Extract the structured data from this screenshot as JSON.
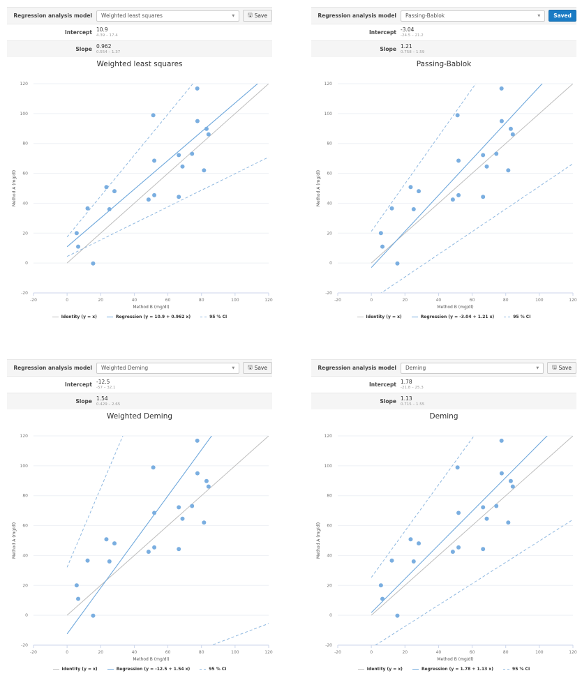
{
  "form_labels": {
    "model": "Regression analysis model",
    "intercept": "Intercept",
    "slope": "Slope"
  },
  "colors": {
    "point": "#7aaee0",
    "regression": "#6fa8dc",
    "identity": "#bdbdbd",
    "ci": "#8fb8e0",
    "saved_button": "#1a7bc4"
  },
  "panels": [
    {
      "model": "Weighted least squares",
      "button": "Save",
      "button_state": "save",
      "intercept": "10.9",
      "intercept_ci": "4.39 – 17.4",
      "slope": "0.962",
      "slope_ci": "0.554 – 1.37",
      "legend": {
        "identity": "Identity (y = x)",
        "regression": "Regression (y = 10.9 + 0.962 x)",
        "ci": "95 % CI"
      }
    },
    {
      "model": "Passing-Bablok",
      "button": "Saved",
      "button_state": "saved",
      "intercept": "-3.04",
      "intercept_ci": "-24.5 – 21.2",
      "slope": "1.21",
      "slope_ci": "0.758 – 1.59",
      "legend": {
        "identity": "Identity (y = x)",
        "regression": "Regression (y = -3.04 + 1.21 x)",
        "ci": "95 % CI"
      }
    },
    {
      "model": "Weighted Deming",
      "button": "Save",
      "button_state": "save",
      "intercept": "-12.5",
      "intercept_ci": "-57 – 32.1",
      "slope": "1.54",
      "slope_ci": "0.429 – 2.65",
      "legend": {
        "identity": "Identity (y = x)",
        "regression": "Regression (y = -12.5 + 1.54 x)",
        "ci": "95 % CI"
      }
    },
    {
      "model": "Deming",
      "button": "Save",
      "button_state": "save",
      "intercept": "1.78",
      "intercept_ci": "-21.8 – 25.3",
      "slope": "1.13",
      "slope_ci": "0.715 – 1.55",
      "legend": {
        "identity": "Identity (y = x)",
        "regression": "Regression (y = 1.78 + 1.13 x)",
        "ci": "95 % CI"
      }
    }
  ],
  "chart_data": [
    {
      "type": "scatter",
      "title": "Weighted least squares",
      "xlabel": "Method B (mg/dl)",
      "ylabel": "Method A (mg/dl)",
      "xlim": [
        -20,
        120
      ],
      "ylim": [
        -20,
        120
      ],
      "xticks": [
        "-20",
        "0",
        "20",
        "40",
        "60",
        "80",
        "100",
        "120"
      ],
      "yticks": [
        "-20",
        "0",
        "20",
        "40",
        "60",
        "80",
        "100",
        "120"
      ],
      "points": [
        [
          5.7,
          20
        ],
        [
          6.6,
          11
        ],
        [
          15.5,
          -0.3
        ],
        [
          12.2,
          36.6
        ],
        [
          23.4,
          50.8
        ],
        [
          28.2,
          48.1
        ],
        [
          25.2,
          36
        ],
        [
          48.5,
          42.5
        ],
        [
          51.9,
          45.4
        ],
        [
          51.3,
          98.9
        ],
        [
          51.9,
          68.5
        ],
        [
          66.5,
          72.2
        ],
        [
          68.7,
          64.6
        ],
        [
          66.5,
          44.3
        ],
        [
          74.4,
          73.1
        ],
        [
          77.5,
          116.8
        ],
        [
          77.6,
          95
        ],
        [
          81.5,
          62
        ],
        [
          83,
          89.8
        ],
        [
          84.2,
          86.1
        ]
      ],
      "regression": {
        "intercept": 10.9,
        "slope": 0.962
      },
      "ci_upper": {
        "intercept": 17.4,
        "slope": 1.37
      },
      "ci_lower": {
        "intercept": 4.39,
        "slope": 0.554
      },
      "legend_position": "bottom"
    },
    {
      "type": "scatter",
      "title": "Passing-Bablok",
      "xlabel": "Method B (mg/dl)",
      "ylabel": "Method A (mg/dl)",
      "xlim": [
        -20,
        120
      ],
      "ylim": [
        -20,
        120
      ],
      "xticks": [
        "-20",
        "0",
        "20",
        "40",
        "60",
        "80",
        "100",
        "120"
      ],
      "yticks": [
        "-20",
        "0",
        "20",
        "40",
        "60",
        "80",
        "100",
        "120"
      ],
      "points": [
        [
          5.7,
          20
        ],
        [
          6.6,
          11
        ],
        [
          15.5,
          -0.3
        ],
        [
          12.2,
          36.6
        ],
        [
          23.4,
          50.8
        ],
        [
          28.2,
          48.1
        ],
        [
          25.2,
          36
        ],
        [
          48.5,
          42.5
        ],
        [
          51.9,
          45.4
        ],
        [
          51.3,
          98.9
        ],
        [
          51.9,
          68.5
        ],
        [
          66.5,
          72.2
        ],
        [
          68.7,
          64.6
        ],
        [
          66.5,
          44.3
        ],
        [
          74.4,
          73.1
        ],
        [
          77.5,
          116.8
        ],
        [
          77.6,
          95
        ],
        [
          81.5,
          62
        ],
        [
          83,
          89.8
        ],
        [
          84.2,
          86.1
        ]
      ],
      "regression": {
        "intercept": -3.04,
        "slope": 1.21
      },
      "ci_upper": {
        "intercept": 21.2,
        "slope": 1.59
      },
      "ci_lower": {
        "intercept": -24.5,
        "slope": 0.758
      },
      "legend_position": "bottom"
    },
    {
      "type": "scatter",
      "title": "Weighted Deming",
      "xlabel": "Method B (mg/dl)",
      "ylabel": "Method A (mg/dl)",
      "xlim": [
        -20,
        120
      ],
      "ylim": [
        -20,
        120
      ],
      "xticks": [
        "-20",
        "0",
        "20",
        "40",
        "60",
        "80",
        "100",
        "120"
      ],
      "yticks": [
        "-20",
        "0",
        "20",
        "40",
        "60",
        "80",
        "100",
        "120"
      ],
      "points": [
        [
          5.7,
          20
        ],
        [
          6.6,
          11
        ],
        [
          15.5,
          -0.3
        ],
        [
          12.2,
          36.6
        ],
        [
          23.4,
          50.8
        ],
        [
          28.2,
          48.1
        ],
        [
          25.2,
          36
        ],
        [
          48.5,
          42.5
        ],
        [
          51.9,
          45.4
        ],
        [
          51.3,
          98.9
        ],
        [
          51.9,
          68.5
        ],
        [
          66.5,
          72.2
        ],
        [
          68.7,
          64.6
        ],
        [
          66.5,
          44.3
        ],
        [
          74.4,
          73.1
        ],
        [
          77.5,
          116.8
        ],
        [
          77.6,
          95
        ],
        [
          81.5,
          62
        ],
        [
          83,
          89.8
        ],
        [
          84.2,
          86.1
        ]
      ],
      "regression": {
        "intercept": -12.5,
        "slope": 1.54
      },
      "ci_upper": {
        "intercept": 32.1,
        "slope": 2.65
      },
      "ci_lower": {
        "intercept": -57,
        "slope": 0.429
      },
      "legend_position": "bottom"
    },
    {
      "type": "scatter",
      "title": "Deming",
      "xlabel": "Method B (mg/dl)",
      "ylabel": "Method A (mg/dl)",
      "xlim": [
        -20,
        120
      ],
      "ylim": [
        -20,
        120
      ],
      "xticks": [
        "-20",
        "0",
        "20",
        "40",
        "60",
        "80",
        "100",
        "120"
      ],
      "yticks": [
        "-20",
        "0",
        "20",
        "40",
        "60",
        "80",
        "100",
        "120"
      ],
      "points": [
        [
          5.7,
          20
        ],
        [
          6.6,
          11
        ],
        [
          15.5,
          -0.3
        ],
        [
          12.2,
          36.6
        ],
        [
          23.4,
          50.8
        ],
        [
          28.2,
          48.1
        ],
        [
          25.2,
          36
        ],
        [
          48.5,
          42.5
        ],
        [
          51.9,
          45.4
        ],
        [
          51.3,
          98.9
        ],
        [
          51.9,
          68.5
        ],
        [
          66.5,
          72.2
        ],
        [
          68.7,
          64.6
        ],
        [
          66.5,
          44.3
        ],
        [
          74.4,
          73.1
        ],
        [
          77.5,
          116.8
        ],
        [
          77.6,
          95
        ],
        [
          81.5,
          62
        ],
        [
          83,
          89.8
        ],
        [
          84.2,
          86.1
        ]
      ],
      "regression": {
        "intercept": 1.78,
        "slope": 1.13
      },
      "ci_upper": {
        "intercept": 25.3,
        "slope": 1.55
      },
      "ci_lower": {
        "intercept": -21.8,
        "slope": 0.715
      },
      "legend_position": "bottom"
    }
  ]
}
